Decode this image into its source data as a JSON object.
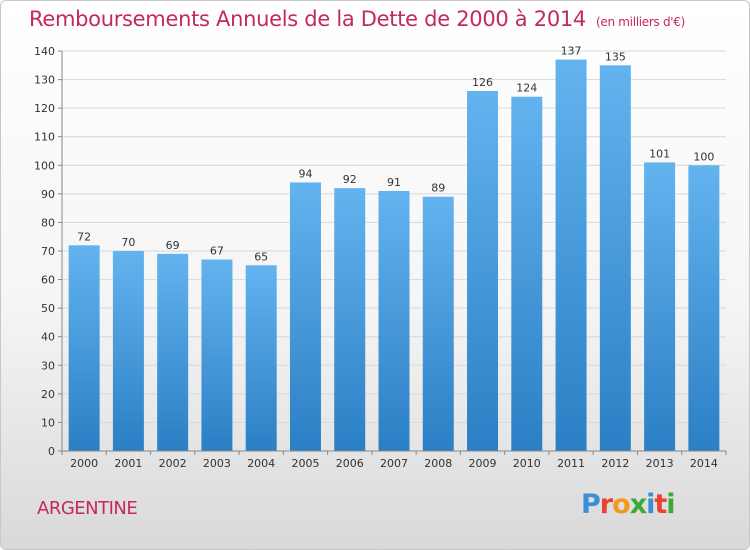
{
  "header": {
    "title": "Remboursements Annuels de la Dette de 2000 à 2014",
    "unit": "(en milliers d'€)"
  },
  "footer": {
    "place": "ARGENTINE",
    "brand": "Proxiti",
    "brand_colors": [
      "#3a8fd6",
      "#e8432e",
      "#f29a1c",
      "#3aaa35",
      "#3a8fd6",
      "#e8432e",
      "#3aaa35"
    ]
  },
  "colors": {
    "title": "#c5285f",
    "bar_light": "#63b3ef",
    "bar_dark": "#2b7fc4",
    "grid": "#d8d8d8",
    "axis_text": "#333333"
  },
  "chart_data": {
    "type": "bar",
    "title": "Remboursements Annuels de la Dette de 2000 à 2014",
    "ylabel": "(en milliers d'€)",
    "categories": [
      "2000",
      "2001",
      "2002",
      "2003",
      "2004",
      "2005",
      "2006",
      "2007",
      "2008",
      "2009",
      "2010",
      "2011",
      "2012",
      "2013",
      "2014"
    ],
    "values": [
      72,
      70,
      69,
      67,
      65,
      94,
      92,
      91,
      89,
      126,
      124,
      137,
      135,
      101,
      100
    ],
    "ylim": [
      0,
      140
    ],
    "yticks": [
      0,
      10,
      20,
      30,
      40,
      50,
      60,
      70,
      80,
      90,
      100,
      110,
      120,
      130,
      140
    ],
    "grid": true,
    "data_labels": true
  }
}
